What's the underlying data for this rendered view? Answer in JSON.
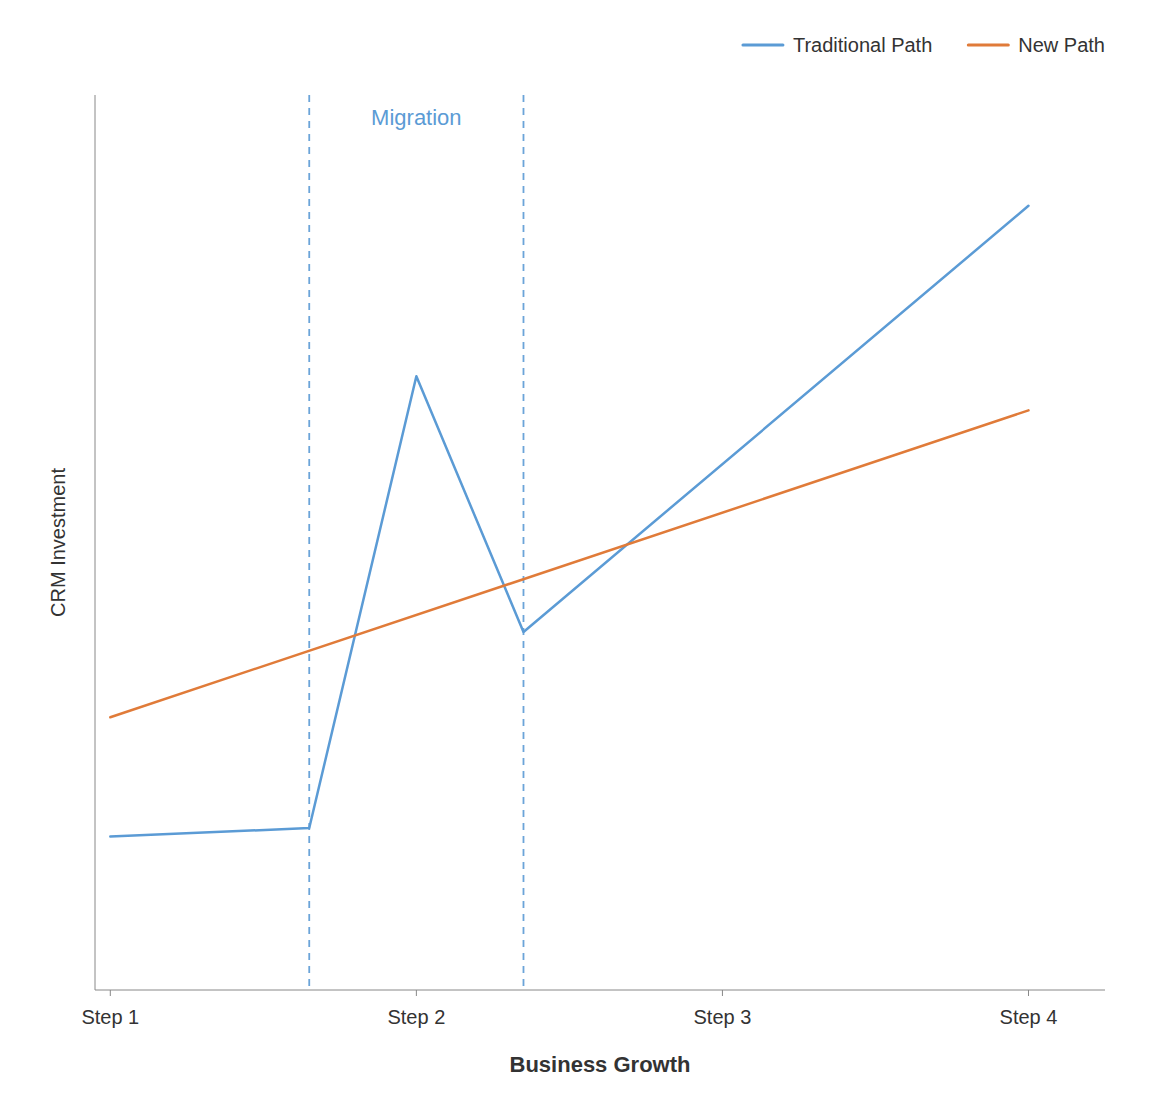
{
  "chart_data": {
    "type": "line",
    "title": "",
    "xlabel": "Business Growth",
    "ylabel": "CRM Investment",
    "xlim": [
      -0.1,
      6.5
    ],
    "ylim": [
      0,
      10.5
    ],
    "xticks": [
      {
        "value": 0,
        "label": "Step 1"
      },
      {
        "value": 2,
        "label": "Step 2"
      },
      {
        "value": 4,
        "label": "Step 3"
      },
      {
        "value": 6,
        "label": "Step 4"
      }
    ],
    "yticks": [],
    "tick_labels": "x",
    "grid": false,
    "legend": "upper right",
    "series": [
      {
        "name": "Traditional Path",
        "color": "#5b9bd5",
        "x": [
          0,
          1.3,
          2.0,
          2.7,
          6.0
        ],
        "values": [
          1.8,
          1.9,
          7.2,
          4.2,
          9.2
        ]
      },
      {
        "name": "New Path",
        "color": "#e07b39",
        "x": [
          0,
          6.0
        ],
        "values": [
          3.2,
          6.8
        ]
      }
    ],
    "vlines": {
      "values": [
        1.3,
        2.7
      ],
      "color": "#5b9bd5",
      "label": "Migration"
    }
  }
}
